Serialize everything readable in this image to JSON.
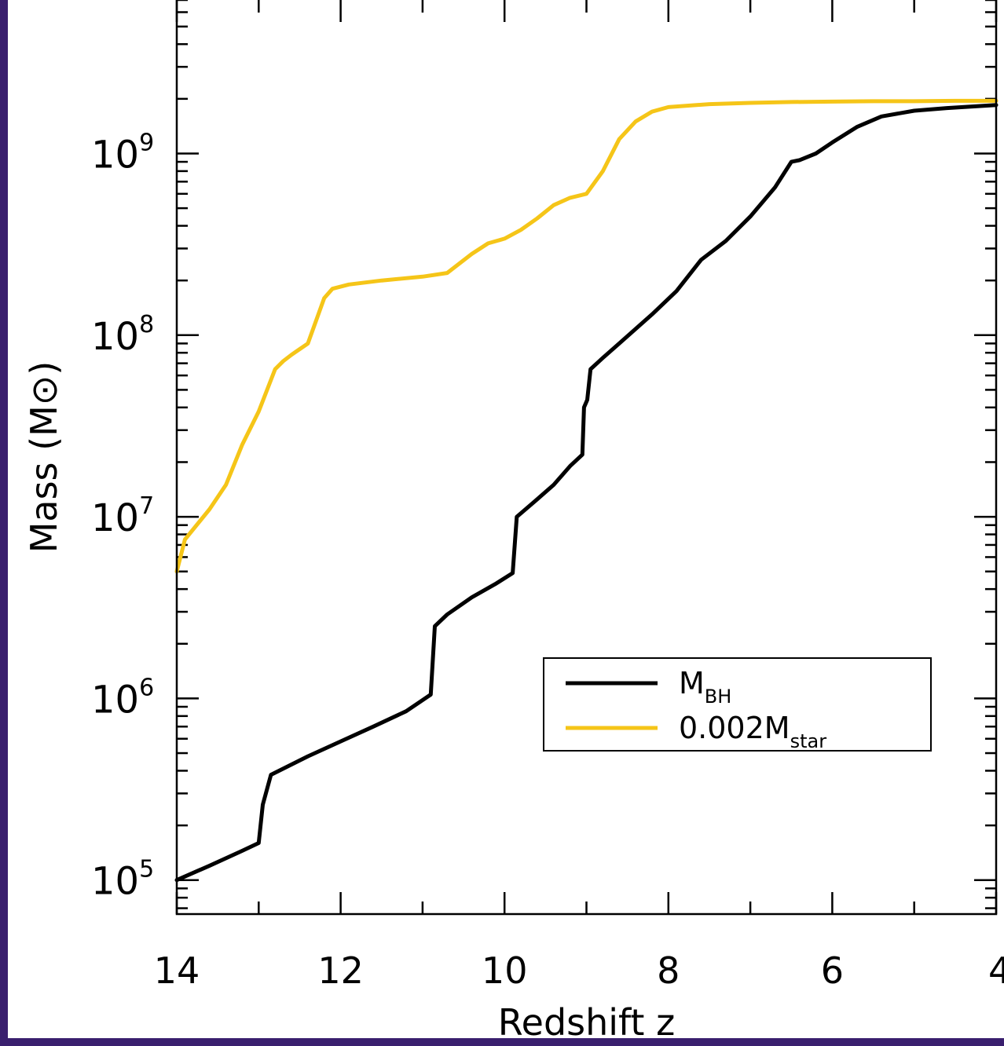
{
  "chart_data": {
    "type": "line",
    "xlabel": "Redshift z",
    "ylabel": "Mass (M⊙)",
    "xlim": [
      14,
      4
    ],
    "ylim": [
      65000,
      7000000000
    ],
    "yscale": "log",
    "x_ticks": [
      14,
      12,
      10,
      8,
      6,
      4
    ],
    "x_tick_labels": [
      "14",
      "12",
      "10",
      "8",
      "6",
      "4"
    ],
    "y_ticks": [
      100000,
      1000000,
      10000000,
      100000000,
      1000000000
    ],
    "y_tick_labels": [
      {
        "base": "10",
        "exp": "5"
      },
      {
        "base": "10",
        "exp": "6"
      },
      {
        "base": "10",
        "exp": "7"
      },
      {
        "base": "10",
        "exp": "8"
      },
      {
        "base": "10",
        "exp": "9"
      }
    ],
    "legend": {
      "position": "lower-right",
      "entries": [
        {
          "main": "M",
          "sub": "BH"
        },
        {
          "main": "0.002M",
          "sub": "star"
        }
      ]
    },
    "series": [
      {
        "name": "M_BH",
        "color": "#000000",
        "x": [
          14.0,
          13.6,
          13.2,
          13.0,
          12.95,
          12.85,
          12.4,
          12.0,
          11.6,
          11.2,
          10.9,
          10.85,
          10.7,
          10.4,
          10.1,
          9.9,
          9.85,
          9.6,
          9.4,
          9.2,
          9.05,
          9.03,
          8.99,
          8.95,
          8.8,
          8.6,
          8.2,
          7.9,
          7.6,
          7.3,
          7.0,
          6.7,
          6.5,
          6.4,
          6.2,
          6.0,
          5.7,
          5.4,
          5.0,
          4.6,
          4.0
        ],
        "y": [
          100000,
          120000,
          145000,
          160000,
          260000,
          380000,
          480000,
          580000,
          700000,
          850000,
          1050000,
          2500000,
          2900000,
          3600000,
          4300000,
          4900000,
          10000000,
          12500000,
          15000000,
          19000000,
          22000000,
          40000000,
          44000000,
          65000000,
          75000000,
          90000000,
          130000000,
          175000000,
          260000000,
          330000000,
          450000000,
          650000000,
          900000000,
          920000000,
          1000000000,
          1150000000,
          1400000000,
          1600000000,
          1720000000,
          1780000000,
          1850000000
        ]
      },
      {
        "name": "0.002M_star",
        "color": "#f5c518",
        "x": [
          14.0,
          13.9,
          13.6,
          13.4,
          13.2,
          13.0,
          12.8,
          12.7,
          12.6,
          12.4,
          12.2,
          12.1,
          11.9,
          11.5,
          11.0,
          10.7,
          10.4,
          10.2,
          10.0,
          9.8,
          9.6,
          9.4,
          9.2,
          9.0,
          8.8,
          8.6,
          8.4,
          8.2,
          8.0,
          7.5,
          7.0,
          6.5,
          6.0,
          5.5,
          5.0,
          4.5,
          4.0
        ],
        "y": [
          5000000,
          7500000,
          11000000,
          15000000,
          25000000,
          38000000,
          65000000,
          72000000,
          78000000,
          90000000,
          160000000,
          180000000,
          190000000,
          200000000,
          210000000,
          220000000,
          280000000,
          320000000,
          340000000,
          380000000,
          440000000,
          520000000,
          570000000,
          600000000,
          800000000,
          1200000000,
          1500000000,
          1700000000,
          1800000000,
          1870000000,
          1900000000,
          1920000000,
          1930000000,
          1940000000,
          1940000000,
          1950000000,
          1950000000
        ]
      }
    ]
  }
}
